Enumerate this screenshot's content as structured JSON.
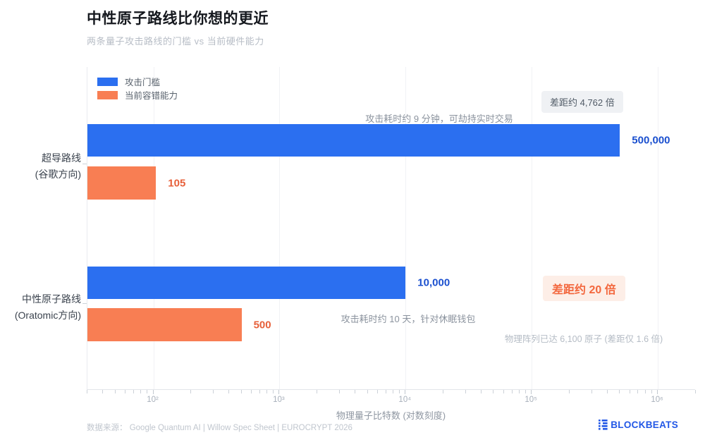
{
  "header": {
    "title": "中性原子路线比你想的更近",
    "subtitle": "两条量子攻击路线的门槛 vs 当前硬件能力"
  },
  "legend": {
    "items": [
      {
        "label": "攻击门槛",
        "color": "#2b6ff0"
      },
      {
        "label": "当前容错能力",
        "color": "#f87e53"
      }
    ]
  },
  "chart_data": {
    "type": "bar",
    "orientation": "horizontal",
    "x_scale": "log",
    "grid": "vertical-major-only",
    "legend_position": "top-left",
    "title": "中性原子路线比你想的更近",
    "subtitle": "两条量子攻击路线的门槛 vs 当前硬件能力",
    "xlabel": "物理量子比特数 (对数刻度)",
    "x_ticks": [
      "10²",
      "10³",
      "10⁴",
      "10⁵",
      "10⁶"
    ],
    "x_tick_values": [
      100,
      1000,
      10000,
      100000,
      1000000
    ],
    "x_domain": [
      30,
      2000000
    ],
    "categories": [
      "超导路线 (谷歌方向)",
      "中性原子路线 (Oratomic方向)"
    ],
    "category_lines": [
      [
        "超导路线",
        "(谷歌方向)"
      ],
      [
        "中性原子路线",
        "(Oratomic方向)"
      ]
    ],
    "series": [
      {
        "name": "攻击门槛",
        "color": "#2b6ff0",
        "value_color": "#1b50cf",
        "values": [
          500000,
          10000
        ],
        "labels": [
          "500,000",
          "10,000"
        ]
      },
      {
        "name": "当前容错能力",
        "color": "#f87e53",
        "value_color": "#e7603a",
        "values": [
          105,
          500
        ],
        "labels": [
          "105",
          "500"
        ]
      }
    ],
    "annotations": [
      "差距约 4,762 倍",
      "攻击耗时约 9 分钟，可劫持实时交易",
      "差距约 20 倍",
      "攻击耗时约 10 天，针对休眠钱包",
      "物理阵列已达 6,100 原子 (差距仅 1.6 倍)"
    ]
  },
  "annotations": {
    "gap1_badge": "差距约 4,762 倍",
    "bar1_note": "攻击耗时约 9 分钟，可劫持实时交易",
    "gap2_badge": "差距约 20 倍",
    "bar2_note": "攻击耗时约 10 天，针对休眠钱包",
    "atoms_note": "物理阵列已达 6,100 原子 (差距仅 1.6 倍)"
  },
  "footer": {
    "source_label": "数据来源：",
    "source": "Google Quantum AI | Willow Spec Sheet | EUROCRYPT 2026",
    "brand": "BLOCKBEATS",
    "brand_color": "#2257e6"
  }
}
